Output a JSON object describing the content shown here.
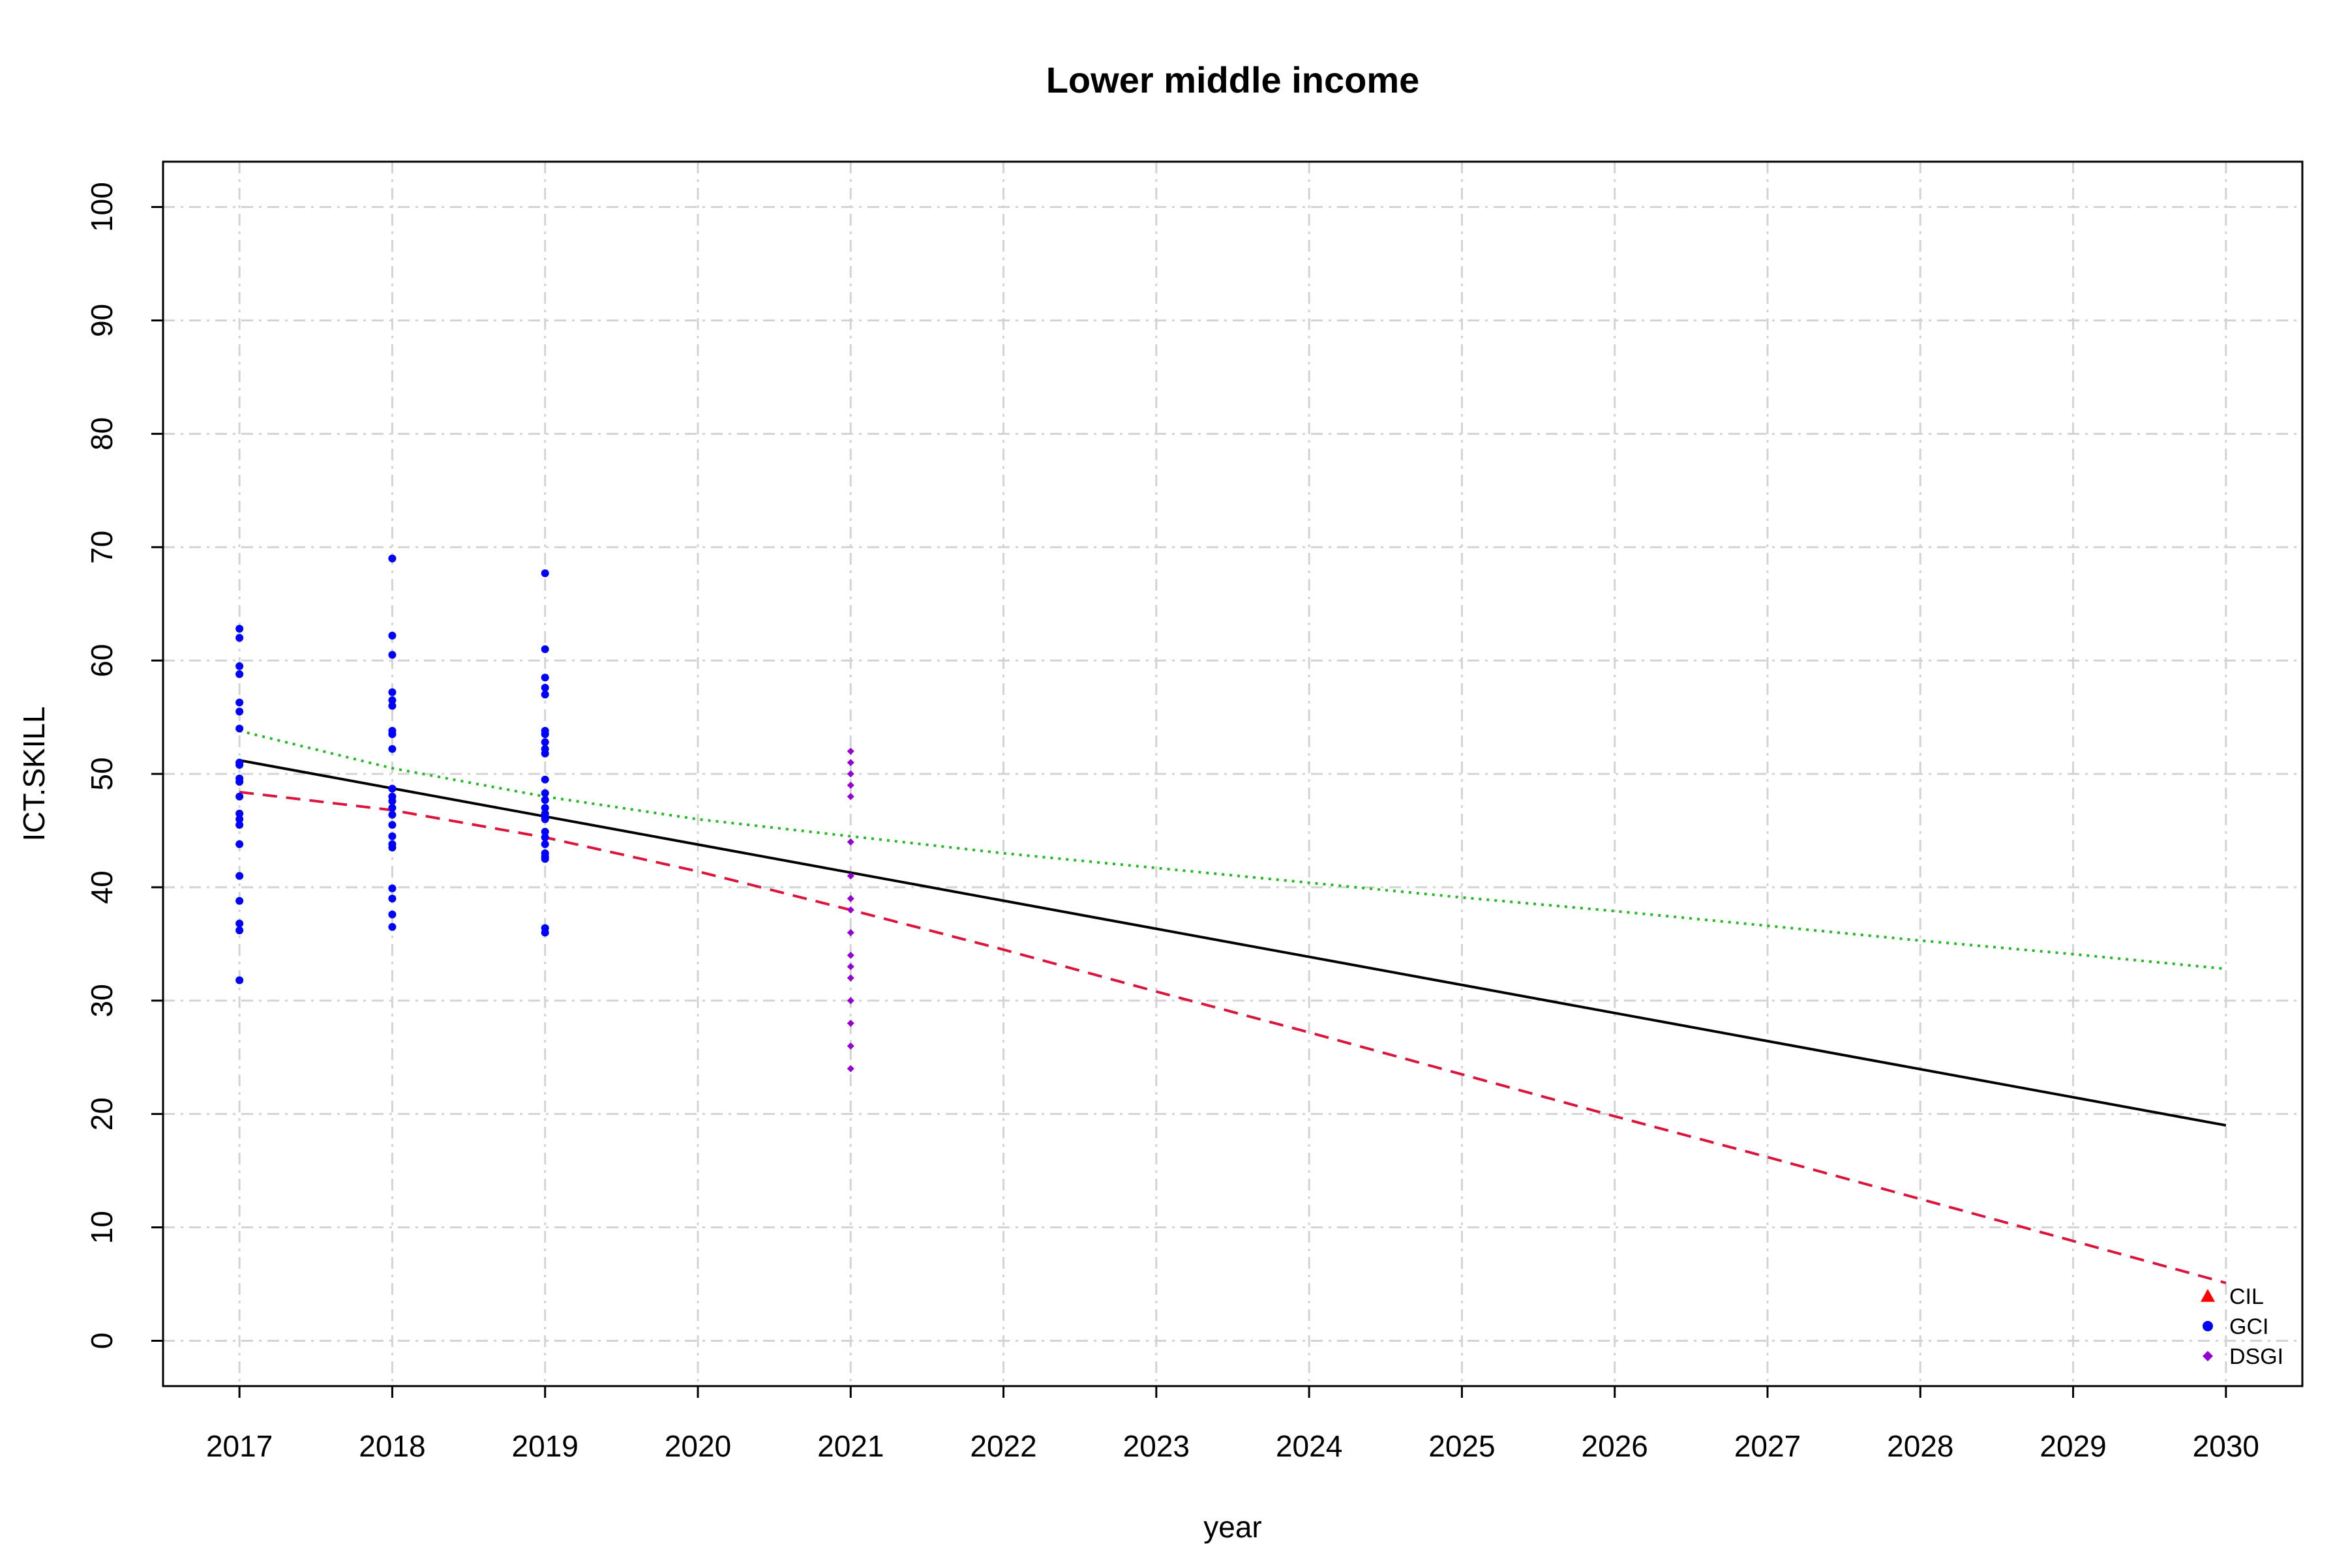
{
  "chart_data": {
    "type": "scatter",
    "title": "Lower middle income",
    "xlabel": "year",
    "ylabel": "ICT.SKILL",
    "xlim": [
      2016.5,
      2030.5
    ],
    "ylim": [
      -4,
      104
    ],
    "x_ticks": [
      2017,
      2018,
      2019,
      2020,
      2021,
      2022,
      2023,
      2024,
      2025,
      2026,
      2027,
      2028,
      2029,
      2030
    ],
    "y_ticks": [
      0,
      10,
      20,
      30,
      40,
      50,
      60,
      70,
      80,
      90,
      100
    ],
    "grid": true,
    "legend_position": "bottom-right",
    "series": [
      {
        "name": "CIL",
        "marker": "triangle",
        "color": "#ff0000",
        "points": []
      },
      {
        "name": "GCI",
        "marker": "circle",
        "color": "#0000ff",
        "points": [
          [
            2017,
            62.8
          ],
          [
            2017,
            62.0
          ],
          [
            2017,
            59.5
          ],
          [
            2017,
            58.8
          ],
          [
            2017,
            56.3
          ],
          [
            2017,
            55.5
          ],
          [
            2017,
            54.0
          ],
          [
            2017,
            51.0
          ],
          [
            2017,
            50.8
          ],
          [
            2017,
            49.6
          ],
          [
            2017,
            49.3
          ],
          [
            2017,
            48.0
          ],
          [
            2017,
            46.5
          ],
          [
            2017,
            46.0
          ],
          [
            2017,
            45.5
          ],
          [
            2017,
            43.8
          ],
          [
            2017,
            41.0
          ],
          [
            2017,
            38.8
          ],
          [
            2017,
            36.8
          ],
          [
            2017,
            36.2
          ],
          [
            2017,
            31.8
          ],
          [
            2018,
            69.0
          ],
          [
            2018,
            62.2
          ],
          [
            2018,
            60.5
          ],
          [
            2018,
            57.2
          ],
          [
            2018,
            56.5
          ],
          [
            2018,
            56.0
          ],
          [
            2018,
            53.8
          ],
          [
            2018,
            53.5
          ],
          [
            2018,
            52.2
          ],
          [
            2018,
            48.7
          ],
          [
            2018,
            48.0
          ],
          [
            2018,
            47.6
          ],
          [
            2018,
            47.0
          ],
          [
            2018,
            46.4
          ],
          [
            2018,
            45.5
          ],
          [
            2018,
            44.5
          ],
          [
            2018,
            43.8
          ],
          [
            2018,
            43.5
          ],
          [
            2018,
            39.9
          ],
          [
            2018,
            39.0
          ],
          [
            2018,
            37.6
          ],
          [
            2018,
            36.5
          ],
          [
            2019,
            67.7
          ],
          [
            2019,
            61.0
          ],
          [
            2019,
            58.5
          ],
          [
            2019,
            57.6
          ],
          [
            2019,
            57.0
          ],
          [
            2019,
            53.8
          ],
          [
            2019,
            53.5
          ],
          [
            2019,
            52.8
          ],
          [
            2019,
            52.2
          ],
          [
            2019,
            51.8
          ],
          [
            2019,
            49.5
          ],
          [
            2019,
            48.3
          ],
          [
            2019,
            47.7
          ],
          [
            2019,
            47.0
          ],
          [
            2019,
            46.5
          ],
          [
            2019,
            46.2
          ],
          [
            2019,
            46.0
          ],
          [
            2019,
            44.9
          ],
          [
            2019,
            44.4
          ],
          [
            2019,
            43.8
          ],
          [
            2019,
            43.0
          ],
          [
            2019,
            42.7
          ],
          [
            2019,
            42.5
          ],
          [
            2019,
            36.4
          ],
          [
            2019,
            36.0
          ]
        ]
      },
      {
        "name": "DSGI",
        "marker": "diamond",
        "color": "#9400d3",
        "points": [
          [
            2021,
            52.0
          ],
          [
            2021,
            51.0
          ],
          [
            2021,
            50.0
          ],
          [
            2021,
            49.0
          ],
          [
            2021,
            48.0
          ],
          [
            2021,
            44.0
          ],
          [
            2021,
            41.0
          ],
          [
            2021,
            39.0
          ],
          [
            2021,
            38.0
          ],
          [
            2021,
            36.0
          ],
          [
            2021,
            34.0
          ],
          [
            2021,
            33.0
          ],
          [
            2021,
            32.0
          ],
          [
            2021,
            30.0
          ],
          [
            2021,
            28.0
          ],
          [
            2021,
            26.0
          ],
          [
            2021,
            24.0
          ]
        ]
      }
    ],
    "trend_lines": [
      {
        "style": "solid",
        "color": "#000000",
        "x": [
          2017,
          2030
        ],
        "y": [
          51.2,
          19.0
        ]
      },
      {
        "style": "dashed",
        "color": "#dc143c",
        "x": [
          2017,
          2018,
          2019,
          2020,
          2021,
          2022,
          2023,
          2024,
          2025,
          2026,
          2027,
          2028,
          2029,
          2030
        ],
        "y": [
          48.4,
          46.8,
          44.4,
          41.4,
          38.0,
          34.5,
          30.8,
          27.2,
          23.5,
          19.8,
          16.2,
          12.5,
          8.8,
          5.1
        ]
      },
      {
        "style": "dotted",
        "color": "#22bb22",
        "x": [
          2017,
          2018,
          2019,
          2020,
          2021,
          2022,
          2023,
          2024,
          2025,
          2026,
          2027,
          2028,
          2029,
          2030
        ],
        "y": [
          53.8,
          50.5,
          48.0,
          46.0,
          44.5,
          43.0,
          41.7,
          40.4,
          39.1,
          37.9,
          36.6,
          35.3,
          34.1,
          32.8
        ]
      }
    ]
  }
}
